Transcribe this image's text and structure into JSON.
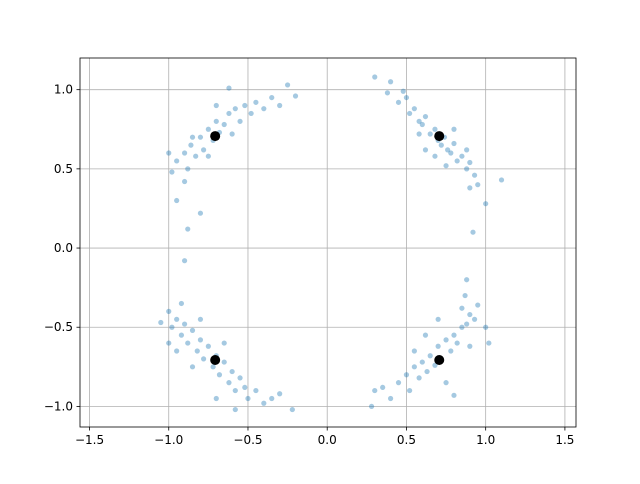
{
  "chart_data": {
    "type": "scatter",
    "xlim": [
      -1.56,
      1.57
    ],
    "ylim": [
      -1.13,
      1.2
    ],
    "xticks": [
      {
        "value": -1.5,
        "label": "−1.5"
      },
      {
        "value": -1.0,
        "label": "−1.0"
      },
      {
        "value": -0.5,
        "label": "−0.5"
      },
      {
        "value": 0.0,
        "label": "0.0"
      },
      {
        "value": 0.5,
        "label": "0.5"
      },
      {
        "value": 1.0,
        "label": "1.0"
      },
      {
        "value": 1.5,
        "label": "1.5"
      }
    ],
    "yticks": [
      {
        "value": -1.0,
        "label": "−1.0"
      },
      {
        "value": -0.5,
        "label": "−0.5"
      },
      {
        "value": 0.0,
        "label": "0.0"
      },
      {
        "value": 0.5,
        "label": "0.5"
      },
      {
        "value": 1.0,
        "label": "1.0"
      }
    ],
    "grid": true,
    "series": [
      {
        "color": "#1f77b4",
        "opacity": 0.4,
        "marker_size": 2.6,
        "x": [
          0.3,
          0.38,
          0.45,
          0.5,
          0.52,
          0.55,
          0.58,
          0.6,
          0.62,
          0.65,
          0.68,
          0.7,
          0.72,
          0.74,
          0.76,
          0.78,
          0.8,
          0.82,
          0.85,
          0.88,
          0.9,
          0.93,
          0.95,
          1.0,
          1.1,
          0.62,
          0.8,
          0.58,
          0.9,
          0.48,
          0.88,
          0.68,
          0.92,
          0.4,
          0.75
        ],
        "y": [
          1.08,
          0.98,
          0.92,
          0.95,
          0.85,
          0.88,
          0.8,
          0.78,
          0.83,
          0.72,
          0.75,
          0.68,
          0.65,
          0.7,
          0.62,
          0.6,
          0.66,
          0.55,
          0.58,
          0.5,
          0.54,
          0.46,
          0.4,
          0.28,
          0.43,
          0.62,
          0.75,
          0.72,
          0.38,
          0.99,
          0.62,
          0.58,
          0.1,
          1.05,
          0.52
        ]
      },
      {
        "color": "#1f77b4",
        "opacity": 0.4,
        "marker_size": 2.6,
        "x": [
          -1.0,
          -0.98,
          -0.95,
          -0.9,
          -0.88,
          -0.86,
          -0.83,
          -0.8,
          -0.78,
          -0.75,
          -0.72,
          -0.7,
          -0.68,
          -0.65,
          -0.62,
          -0.6,
          -0.58,
          -0.55,
          -0.52,
          -0.48,
          -0.45,
          -0.4,
          -0.35,
          -0.3,
          -0.25,
          -0.2,
          -0.62,
          -0.9,
          -0.95,
          -0.88,
          -0.9,
          -0.75,
          -0.85,
          -0.8,
          -0.7
        ],
        "y": [
          0.6,
          0.48,
          0.55,
          0.6,
          0.5,
          0.65,
          0.58,
          0.7,
          0.62,
          0.75,
          0.68,
          0.8,
          0.73,
          0.78,
          0.85,
          0.72,
          0.88,
          0.8,
          0.9,
          0.85,
          0.92,
          0.88,
          0.95,
          0.9,
          1.03,
          0.96,
          1.01,
          0.42,
          0.3,
          0.12,
          -0.08,
          0.58,
          0.7,
          0.22,
          0.9
        ]
      },
      {
        "color": "#1f77b4",
        "opacity": 0.4,
        "marker_size": 2.6,
        "x": [
          -1.05,
          -1.0,
          -0.98,
          -0.95,
          -0.92,
          -0.9,
          -0.88,
          -0.85,
          -0.82,
          -0.8,
          -0.78,
          -0.75,
          -0.72,
          -0.7,
          -0.68,
          -0.65,
          -0.62,
          -0.6,
          -0.58,
          -0.55,
          -0.52,
          -0.5,
          -0.45,
          -0.4,
          -0.35,
          -0.22,
          -0.58,
          -0.92,
          -0.95,
          -0.8,
          -0.7,
          -1.0,
          -0.85,
          -0.65,
          -0.3
        ],
        "y": [
          -0.47,
          -0.4,
          -0.5,
          -0.45,
          -0.55,
          -0.48,
          -0.6,
          -0.52,
          -0.65,
          -0.58,
          -0.7,
          -0.62,
          -0.75,
          -0.68,
          -0.8,
          -0.72,
          -0.85,
          -0.78,
          -0.9,
          -0.82,
          -0.88,
          -0.95,
          -0.9,
          -0.98,
          -0.95,
          -1.02,
          -1.02,
          -0.35,
          -0.65,
          -0.45,
          -0.95,
          -0.6,
          -0.75,
          -0.6,
          -0.92
        ]
      },
      {
        "color": "#1f77b4",
        "opacity": 0.4,
        "marker_size": 2.6,
        "x": [
          0.28,
          0.3,
          0.35,
          0.45,
          0.5,
          0.52,
          0.55,
          0.58,
          0.6,
          0.63,
          0.65,
          0.68,
          0.7,
          0.72,
          0.75,
          0.78,
          0.8,
          0.82,
          0.85,
          0.88,
          0.9,
          0.93,
          0.95,
          1.0,
          1.02,
          0.87,
          0.7,
          0.8,
          0.4,
          0.62,
          0.75,
          0.9,
          0.55,
          0.85,
          0.88
        ],
        "y": [
          -1.0,
          -0.9,
          -0.88,
          -0.85,
          -0.8,
          -0.9,
          -0.75,
          -0.82,
          -0.72,
          -0.78,
          -0.68,
          -0.74,
          -0.62,
          -0.7,
          -0.58,
          -0.65,
          -0.55,
          -0.6,
          -0.5,
          -0.48,
          -0.42,
          -0.45,
          -0.36,
          -0.5,
          -0.6,
          -0.3,
          -0.45,
          -0.93,
          -0.95,
          -0.55,
          -0.85,
          -0.62,
          -0.65,
          -0.38,
          -0.2
        ]
      },
      {
        "color": "#000000",
        "opacity": 1,
        "marker_size": 5,
        "x": [
          0.707,
          -0.707,
          -0.707,
          0.707
        ],
        "y": [
          0.707,
          0.707,
          -0.707,
          -0.707
        ]
      }
    ]
  }
}
